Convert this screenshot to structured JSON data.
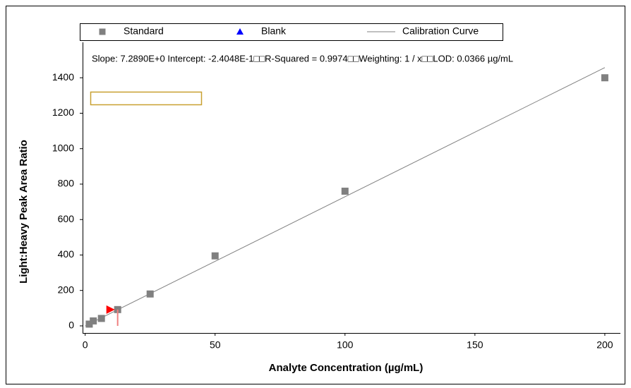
{
  "chart_data": {
    "type": "scatter",
    "xlabel": "Analyte Concentration (µg/mL)",
    "ylabel": "Light:Heavy Peak Area Ratio",
    "annotation": "Slope: 7.2890E+0 Intercept: -2.4048E-1□□R-Squared = 0.9974□□Weighting: 1 / x□□LOD: 0.0366 µg/mL",
    "xlim": [
      -1,
      206
    ],
    "ylim": [
      -40,
      1600
    ],
    "xticks": [
      0,
      50,
      100,
      150,
      200
    ],
    "yticks": [
      0,
      200,
      400,
      600,
      800,
      1000,
      1200,
      1400
    ],
    "series": [
      {
        "name": "Standard",
        "color": "#808080",
        "marker": "square",
        "x": [
          1.5625,
          3.125,
          6.25,
          12.5,
          25,
          50,
          100,
          200
        ],
        "values": [
          10,
          28,
          42,
          92,
          180,
          395,
          760,
          1400
        ]
      },
      {
        "name": "Blank",
        "color": "#0000ff",
        "marker": "triangle",
        "x": [],
        "values": []
      },
      {
        "name": "Calibration Curve",
        "color": "#808080",
        "marker": "line",
        "x": [
          0,
          200
        ],
        "values": [
          -0.24,
          1457.56
        ]
      }
    ]
  }
}
